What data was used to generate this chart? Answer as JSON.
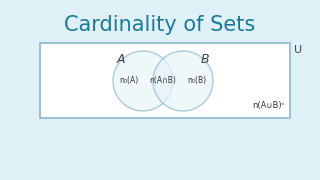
{
  "title": "Cardinality of Sets",
  "title_color": "#1a7a9a",
  "title_fontsize": 15,
  "background_color": "#dff0f7",
  "rect_edgecolor": "#8ab8cc",
  "circle_edgecolor": "#8ab8cc",
  "circle_facecolor": "#e8f4f8",
  "label_A": "A",
  "label_B": "B",
  "label_U": "U",
  "text_nA": "n₀(A)",
  "text_nAB": "n(A∩B)",
  "text_nB": "n₀(B)",
  "text_complement": "n(A∪B)ᶜ",
  "label_color": "#444444",
  "text_color": "#333333"
}
